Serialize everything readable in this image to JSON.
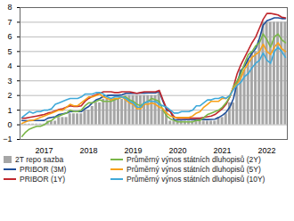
{
  "chart_data": {
    "type": "bar",
    "categories": [
      null,
      null,
      null,
      null,
      null,
      null,
      "2017",
      null,
      null,
      null,
      null,
      null,
      null,
      null,
      null,
      null,
      null,
      null,
      "2018",
      null,
      null,
      null,
      null,
      null,
      null,
      null,
      null,
      null,
      null,
      null,
      "2019",
      null,
      null,
      null,
      null,
      null,
      null,
      null,
      null,
      null,
      null,
      null,
      "2020",
      null,
      null,
      null,
      null,
      null,
      null,
      null,
      null,
      null,
      null,
      null,
      "2021",
      null,
      null,
      null,
      null,
      null,
      null,
      null,
      null,
      null,
      null,
      null,
      "2022",
      null,
      null,
      null,
      null,
      null
    ],
    "ylim": [
      -1,
      8
    ],
    "yticks": [
      -1,
      0,
      1,
      2,
      3,
      4,
      5,
      6,
      7,
      8
    ],
    "grid": true,
    "legend": "bottom",
    "series": [
      {
        "name": "2T repo sazba",
        "type": "bar",
        "color": "#a6a6a6",
        "values": [
          0.05,
          0.05,
          0.05,
          0.05,
          0.05,
          0.05,
          0.05,
          0.25,
          0.25,
          0.25,
          0.5,
          0.5,
          0.5,
          0.75,
          0.75,
          0.75,
          0.75,
          1.0,
          1.0,
          1.25,
          1.5,
          1.5,
          1.75,
          1.75,
          1.75,
          1.75,
          1.75,
          1.75,
          2.0,
          2.0,
          2.0,
          2.0,
          2.0,
          2.0,
          2.0,
          2.0,
          2.0,
          2.25,
          1.0,
          1.0,
          0.25,
          0.25,
          0.25,
          0.25,
          0.25,
          0.25,
          0.25,
          0.25,
          0.25,
          0.25,
          0.25,
          0.25,
          0.25,
          0.5,
          0.5,
          0.75,
          1.5,
          1.5,
          2.75,
          3.75,
          3.75,
          4.5,
          5.0,
          5.0,
          5.75,
          7.0,
          7.0,
          7.0,
          7.0,
          7.0,
          7.0,
          7.0
        ]
      },
      {
        "name": "PRIBOR (3M)",
        "type": "line",
        "color": "#1f4e99",
        "values": [
          0.29,
          0.28,
          0.28,
          0.29,
          0.29,
          0.29,
          0.3,
          0.45,
          0.5,
          0.55,
          0.7,
          0.75,
          0.8,
          0.9,
          0.9,
          0.9,
          0.9,
          1.1,
          1.25,
          1.5,
          1.7,
          1.8,
          1.95,
          2.0,
          2.02,
          2.02,
          2.02,
          2.05,
          2.15,
          2.15,
          2.15,
          2.15,
          2.17,
          2.17,
          2.18,
          2.18,
          2.18,
          2.3,
          1.6,
          1.0,
          0.9,
          0.35,
          0.34,
          0.34,
          0.35,
          0.35,
          0.35,
          0.36,
          0.36,
          0.36,
          0.36,
          0.37,
          0.38,
          0.5,
          0.65,
          0.85,
          1.2,
          1.8,
          2.9,
          3.7,
          4.0,
          4.5,
          4.9,
          5.2,
          5.9,
          6.8,
          7.1,
          7.2,
          7.3,
          7.3,
          7.25,
          7.25
        ]
      },
      {
        "name": "PRIBOR (1Y)",
        "type": "line",
        "color": "#c0272d",
        "values": [
          0.45,
          0.45,
          0.5,
          0.55,
          0.6,
          0.65,
          0.7,
          0.8,
          0.85,
          0.95,
          1.05,
          1.1,
          1.2,
          1.3,
          1.25,
          1.25,
          1.3,
          1.6,
          1.8,
          1.95,
          2.05,
          2.15,
          2.25,
          2.25,
          2.25,
          2.2,
          2.2,
          2.25,
          2.25,
          2.25,
          2.2,
          2.15,
          2.2,
          2.25,
          2.25,
          2.25,
          2.25,
          2.35,
          1.7,
          1.1,
          0.9,
          0.55,
          0.45,
          0.45,
          0.45,
          0.45,
          0.45,
          0.45,
          0.45,
          0.5,
          0.55,
          0.6,
          0.7,
          0.9,
          1.1,
          1.4,
          1.9,
          2.6,
          3.5,
          4.1,
          4.6,
          5.1,
          5.6,
          6.0,
          6.6,
          7.2,
          7.6,
          7.6,
          7.55,
          7.5,
          7.35,
          7.3
        ]
      },
      {
        "name": "Průměrný výnos státních dluhopisů (2Y)",
        "type": "line",
        "color": "#7ab648",
        "values": [
          -0.8,
          -0.5,
          -0.3,
          -0.2,
          -0.1,
          -0.1,
          0.0,
          0.2,
          0.3,
          0.5,
          0.6,
          0.7,
          0.8,
          1.0,
          0.9,
          0.9,
          1.0,
          1.3,
          1.5,
          1.5,
          1.6,
          1.7,
          1.6,
          1.6,
          1.6,
          1.7,
          1.8,
          1.9,
          1.9,
          1.7,
          1.6,
          1.4,
          1.3,
          1.5,
          1.6,
          1.8,
          1.7,
          1.6,
          1.0,
          0.6,
          0.4,
          0.3,
          0.2,
          0.2,
          0.2,
          0.2,
          0.2,
          0.3,
          0.3,
          0.5,
          0.7,
          0.8,
          0.9,
          1.0,
          1.2,
          1.5,
          1.9,
          2.6,
          3.0,
          3.5,
          4.2,
          4.8,
          5.0,
          5.4,
          5.6,
          6.2,
          5.8,
          5.3,
          6.0,
          6.2,
          5.8,
          5.6
        ]
      },
      {
        "name": "Průměrný výnos státních dluhopisů (5Y)",
        "type": "line",
        "color": "#f7a11a",
        "values": [
          0.1,
          0.2,
          0.3,
          0.3,
          0.4,
          0.5,
          0.6,
          0.7,
          0.8,
          0.9,
          1.0,
          1.0,
          1.2,
          1.4,
          1.3,
          1.3,
          1.5,
          1.7,
          1.9,
          1.9,
          2.0,
          2.1,
          1.9,
          1.8,
          1.7,
          1.8,
          1.8,
          1.9,
          1.7,
          1.5,
          1.4,
          1.1,
          1.1,
          1.4,
          1.4,
          1.5,
          1.4,
          1.2,
          1.1,
          0.8,
          0.6,
          0.5,
          0.5,
          0.5,
          0.5,
          0.5,
          0.6,
          0.8,
          0.9,
          1.2,
          1.4,
          1.6,
          1.6,
          1.6,
          1.8,
          1.8,
          2.0,
          2.5,
          2.8,
          3.2,
          3.8,
          4.2,
          4.6,
          4.8,
          5.0,
          5.5,
          5.0,
          4.8,
          5.3,
          5.6,
          5.2,
          5.0
        ]
      },
      {
        "name": "Průměrný výnos státních dluhopisů (10Y)",
        "type": "line",
        "color": "#3fa9d9",
        "values": [
          0.5,
          0.7,
          0.9,
          0.8,
          0.9,
          0.9,
          1.0,
          1.0,
          1.1,
          1.4,
          1.5,
          1.6,
          1.7,
          1.8,
          1.8,
          1.8,
          1.9,
          2.1,
          2.1,
          2.1,
          2.2,
          2.2,
          2.1,
          1.9,
          1.8,
          1.9,
          1.9,
          1.9,
          1.8,
          1.6,
          1.5,
          1.2,
          1.2,
          1.5,
          1.6,
          1.6,
          1.6,
          1.4,
          1.3,
          1.2,
          1.0,
          0.8,
          0.8,
          0.9,
          0.9,
          0.9,
          1.0,
          1.3,
          1.3,
          1.5,
          1.7,
          1.7,
          1.8,
          1.8,
          1.9,
          1.8,
          2.0,
          2.4,
          2.7,
          2.9,
          3.3,
          3.5,
          3.9,
          4.2,
          4.4,
          4.9,
          4.4,
          4.2,
          5.0,
          5.3,
          5.0,
          4.6
        ]
      }
    ]
  }
}
